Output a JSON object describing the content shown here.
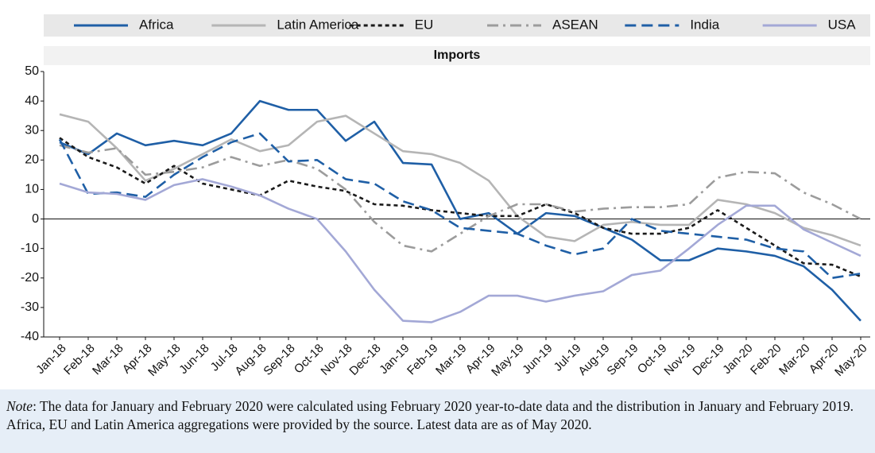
{
  "chart_data": {
    "type": "line",
    "title": "Imports",
    "categories": [
      "Jan-18",
      "Feb-18",
      "Mar-18",
      "Apr-18",
      "May-18",
      "Jun-18",
      "Jul-18",
      "Aug-18",
      "Sep-18",
      "Oct-18",
      "Nov-18",
      "Dec-18",
      "Jan-19",
      "Feb-19",
      "Mar-19",
      "Apr-19",
      "May-19",
      "Jun-19",
      "Jul-19",
      "Aug-19",
      "Sep-19",
      "Oct-19",
      "Nov-19",
      "Dec-19",
      "Jan-20",
      "Feb-20",
      "Mar-20",
      "Apr-20",
      "May-20"
    ],
    "series": [
      {
        "name": "Africa",
        "color": "#1f5fa6",
        "dash": "solid",
        "values": [
          26,
          22,
          29,
          25,
          26.5,
          25,
          29,
          40,
          37,
          37,
          26.5,
          33,
          19,
          18.5,
          0,
          2,
          -5,
          2,
          1,
          -3,
          -7,
          -14,
          -14,
          -10,
          -11,
          -12.5,
          -16,
          -24,
          -34.5
        ]
      },
      {
        "name": "Latin America",
        "color": "#b5b5b5",
        "dash": "solid",
        "values": [
          35.5,
          33,
          24,
          13,
          17,
          22,
          27,
          23,
          25,
          33,
          35,
          29,
          23,
          22,
          19,
          13,
          1,
          -6,
          -7.5,
          -2,
          -1,
          -2,
          -2,
          6.5,
          5,
          2,
          -3,
          -5.5,
          -9
        ]
      },
      {
        "name": "EU",
        "color": "#1a1a1a",
        "dash": "dotted",
        "values": [
          27.5,
          21,
          17.5,
          12,
          18,
          12,
          10,
          8,
          13,
          11,
          9.5,
          5,
          4.5,
          3,
          2,
          1,
          1,
          5,
          2,
          -3,
          -5,
          -5,
          -3,
          3,
          -3,
          -9,
          -15,
          -15.5,
          -19.5
        ]
      },
      {
        "name": "ASEAN",
        "color": "#9c9c9c",
        "dash": "dashdot",
        "values": [
          25,
          22.5,
          24,
          15,
          16,
          17.5,
          21,
          18,
          20,
          17,
          10,
          -1,
          -9,
          -11,
          -5,
          1,
          5,
          5,
          2.5,
          3.5,
          4,
          4,
          5,
          14,
          16,
          15.5,
          9,
          5,
          0
        ]
      },
      {
        "name": "India",
        "color": "#1f5fa6",
        "dash": "dashed",
        "values": [
          27,
          8.5,
          9,
          7.5,
          15,
          21,
          26,
          29,
          19.5,
          20,
          13.5,
          12,
          6,
          3,
          -3,
          -4,
          -5,
          -9,
          -12,
          -10,
          0,
          -4,
          -5,
          -6,
          -7,
          -10,
          -11,
          -20,
          -18.5
        ]
      },
      {
        "name": "USA",
        "color": "#a3a8d6",
        "dash": "solid",
        "values": [
          12,
          9,
          8.5,
          6.5,
          11.5,
          13.5,
          11,
          8,
          3.5,
          0,
          -11,
          -24,
          -34.5,
          -35,
          -31.5,
          -26,
          -26,
          -28,
          -26,
          -24.5,
          -19,
          -17.5,
          -10,
          -2,
          4.5,
          4.5,
          -3.5,
          -8,
          -12.5
        ]
      }
    ],
    "ylim": [
      -40,
      50
    ],
    "yticks": [
      -40,
      -30,
      -20,
      -10,
      0,
      10,
      20,
      30,
      40,
      50
    ],
    "grid": false,
    "zero_line": true,
    "legend": "top"
  },
  "note_label": "Note",
  "note": ": The data for January and February 2020 were calculated using February 2020 year-to-date data and the distribution in January and February 2019. Africa, EU and Latin America aggregations were provided by the source. Latest data are as of May 2020."
}
